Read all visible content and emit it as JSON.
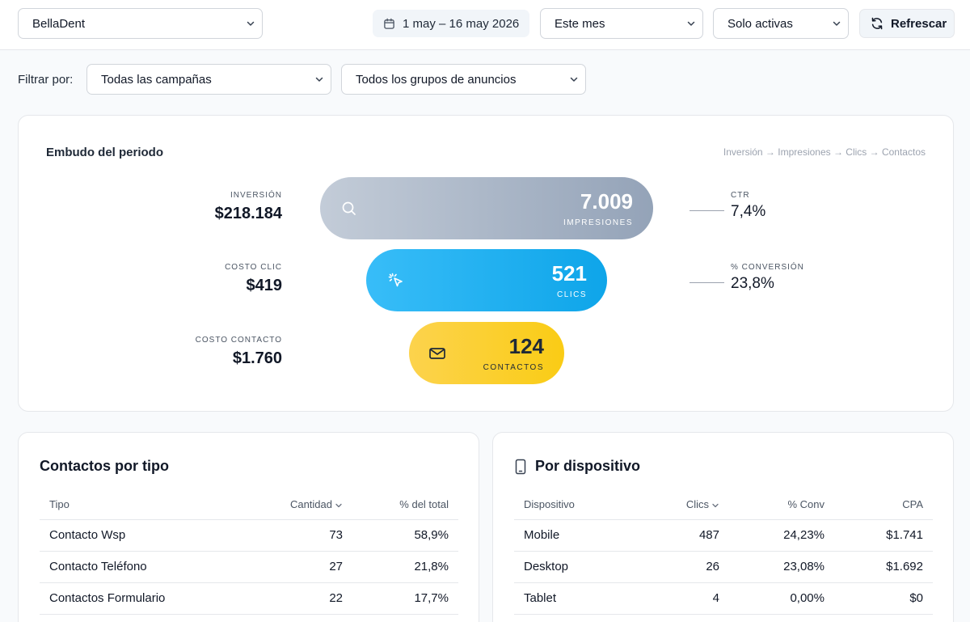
{
  "topbar": {
    "account_select": "BellaDent",
    "date_range": "1 may – 16 may 2026",
    "period_select": "Este mes",
    "status_select": "Solo activas",
    "refresh_label": "Refrescar"
  },
  "filters": {
    "label": "Filtrar por:",
    "campaigns_select": "Todas las campañas",
    "adgroups_select": "Todos los grupos de anuncios"
  },
  "funnel": {
    "title": "Embudo del periodo",
    "path": "Inversión → Impresiones → Clics → Contactos",
    "left_metrics": [
      {
        "label": "INVERSIÓN",
        "value": "$218.184"
      },
      {
        "label": "COSTO CLIC",
        "value": "$419"
      },
      {
        "label": "COSTO CONTACTO",
        "value": "$1.760"
      }
    ],
    "stages": [
      {
        "value": "7.009",
        "label": "IMPRESIONES",
        "icon": "search-icon"
      },
      {
        "value": "521",
        "label": "CLICS",
        "icon": "cursor-click-icon"
      },
      {
        "value": "124",
        "label": "CONTACTOS",
        "icon": "mail-icon"
      }
    ],
    "right_metrics": [
      {
        "label": "CTR",
        "value": "7,4%"
      },
      {
        "label": "% CONVERSIÓN",
        "value": "23,8%"
      }
    ]
  },
  "contacts_by_type": {
    "title": "Contactos por tipo",
    "columns": [
      "Tipo",
      "Cantidad",
      "% del total"
    ],
    "rows": [
      [
        "Contacto Wsp",
        "73",
        "58,9%"
      ],
      [
        "Contacto Teléfono",
        "27",
        "21,8%"
      ],
      [
        "Contactos Formulario",
        "22",
        "17,7%"
      ]
    ]
  },
  "by_device": {
    "title": "Por dispositivo",
    "icon": "smartphone-icon",
    "columns": [
      "Dispositivo",
      "Clics",
      "% Conv",
      "CPA"
    ],
    "rows": [
      [
        "Mobile",
        "487",
        "24,23%",
        "$1.741"
      ],
      [
        "Desktop",
        "26",
        "23,08%",
        "$1.692"
      ],
      [
        "Tablet",
        "4",
        "0,00%",
        "$0"
      ]
    ]
  }
}
